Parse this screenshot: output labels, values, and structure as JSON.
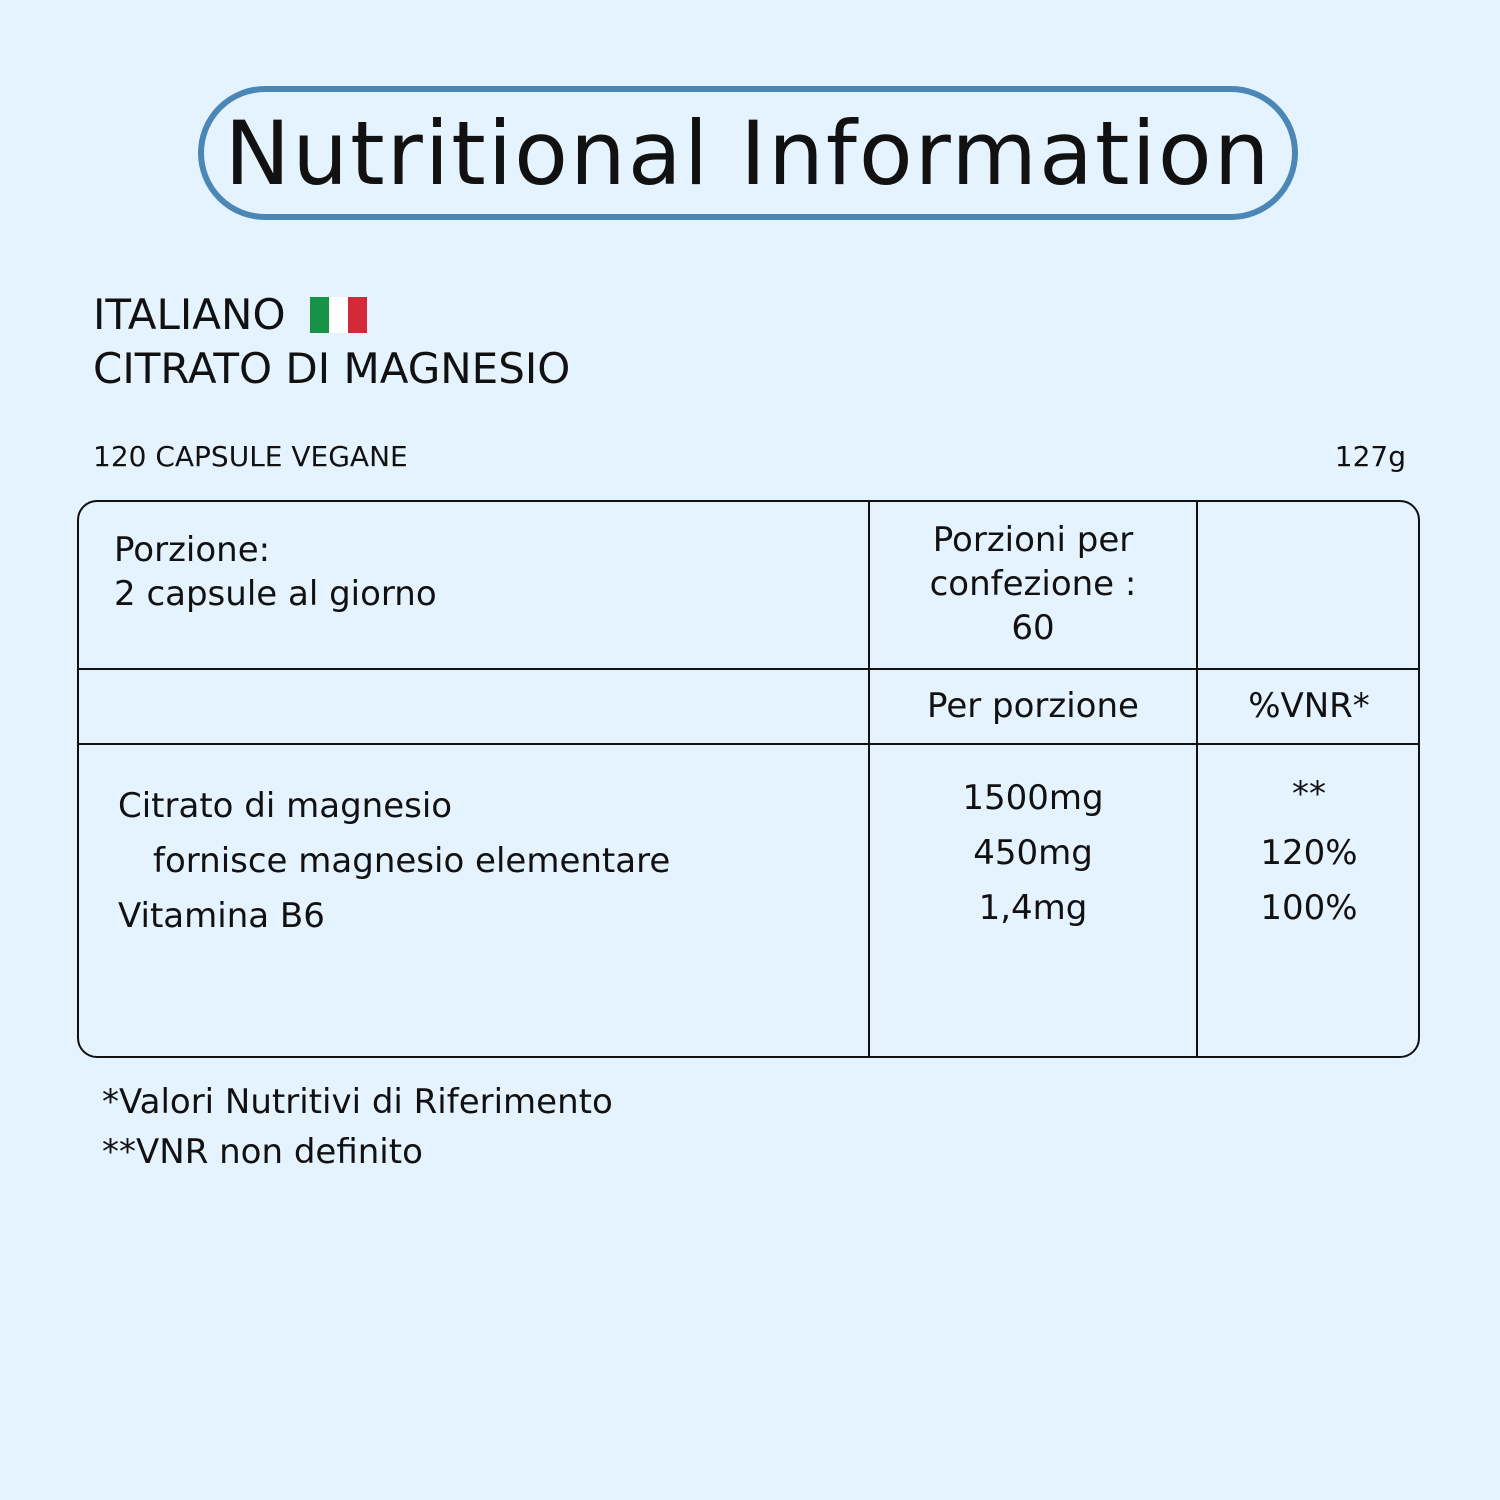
{
  "title": "Nutritional Information",
  "language": "ITALIANO",
  "flag_colors": [
    "#169347",
    "#ffffff",
    "#d22a36"
  ],
  "product": "CITRATO DI MAGNESIO",
  "capsules": "120 CAPSULE VEGANE",
  "weight": "127g",
  "table": {
    "serving_label": "Porzione:",
    "serving_value": "2 capsule al giorno",
    "servings_per_pack": [
      "Porzioni per",
      "confezione :",
      "60"
    ],
    "col_per_serving": "Per porzione",
    "col_vnr": "%VNR*",
    "rows": [
      {
        "name": "Citrato di magnesio",
        "amount": "1500mg",
        "vnr": "**"
      },
      {
        "name": "fornisce magnesio elementare",
        "amount": "450mg",
        "vnr": "120%"
      },
      {
        "name": "Vitamina B6",
        "amount": "1,4mg",
        "vnr": "100%"
      }
    ]
  },
  "footnotes": [
    "*Valori Nutritivi di Riferimento",
    "**VNR non definito"
  ]
}
